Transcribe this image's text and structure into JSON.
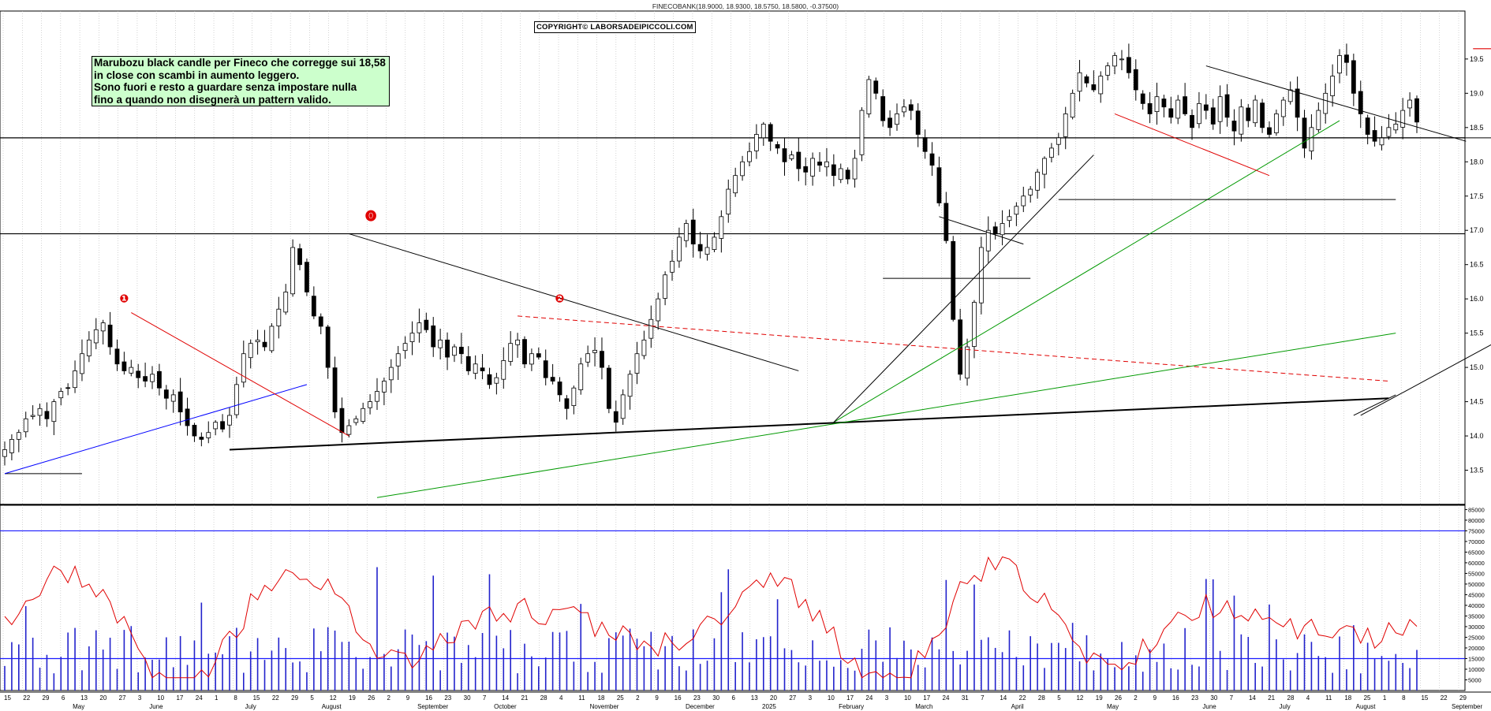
{
  "header": {
    "title": "FINECOBANK(18.9000, 18.9300, 18.5750, 18.5800, -0.37500)",
    "copyright": "COPYRIGHT© LABORSADEIPICCOLI.COM"
  },
  "note": {
    "lines": [
      "Marubozu black candle per Fineco che corregge sui 18,58",
      "in close con scambi in aumento leggero.",
      "Sono fuori e resto a guardare senza impostare nulla",
      "fino a quando non disegnerà un pattern valido."
    ]
  },
  "chart_data": {
    "type": "candlestick",
    "price_axis": {
      "ylim": [
        13.0,
        20.2
      ],
      "ticks": [
        "13.5",
        "14.0",
        "14.5",
        "15.0",
        "15.5",
        "16.0",
        "16.5",
        "17.0",
        "17.5",
        "18.0",
        "18.5",
        "19.0",
        "19.5"
      ]
    },
    "volume_axis": {
      "ylim": [
        0,
        87000
      ],
      "ticks": [
        "5000",
        "10000",
        "15000",
        "20000",
        "25000",
        "30000",
        "35000",
        "40000",
        "45000",
        "50000",
        "55000",
        "60000",
        "65000",
        "70000",
        "75000",
        "80000",
        "85000"
      ]
    },
    "x_day_labels": [
      "15",
      "22",
      "29",
      "6",
      "13",
      "20",
      "27",
      "3",
      "10",
      "17",
      "24",
      "1",
      "8",
      "15",
      "22",
      "29",
      "5",
      "12",
      "19",
      "26",
      "2",
      "9",
      "16",
      "23",
      "30",
      "7",
      "14",
      "21",
      "28",
      "4",
      "11",
      "18",
      "25",
      "2",
      "9",
      "16",
      "23",
      "30",
      "6",
      "13",
      "20",
      "27",
      "3",
      "10",
      "17",
      "24",
      "3",
      "10",
      "17",
      "24",
      "31",
      "7",
      "14",
      "22",
      "28",
      "5",
      "12",
      "19",
      "26",
      "2",
      "9",
      "16",
      "23",
      "30",
      "7",
      "14",
      "21",
      "28",
      "4",
      "11",
      "18",
      "25",
      "1",
      "8",
      "15",
      "22",
      "29"
    ],
    "x_month_labels": [
      "May",
      "June",
      "July",
      "August",
      "September",
      "October",
      "November",
      "December",
      "2025",
      "February",
      "March",
      "April",
      "May",
      "June",
      "July",
      "August",
      "September"
    ],
    "horizontal_levels": [
      16.95,
      18.35
    ],
    "volume_reference_levels": [
      75000,
      15000
    ],
    "wave_labels": [
      "❶",
      "⓿",
      "❷"
    ],
    "first_date": "2024-05-13",
    "last_date": "2025-09-15",
    "closes": [
      13.8,
      13.95,
      14.05,
      14.25,
      14.3,
      14.4,
      14.25,
      14.5,
      14.65,
      14.7,
      14.95,
      15.2,
      15.4,
      15.55,
      15.65,
      15.3,
      15.05,
      14.95,
      15.0,
      14.85,
      14.8,
      14.9,
      14.7,
      14.55,
      14.6,
      14.35,
      14.15,
      14.0,
      13.95,
      14.05,
      14.2,
      14.1,
      14.3,
      14.75,
      15.2,
      15.35,
      15.4,
      15.3,
      15.6,
      15.85,
      16.1,
      16.75,
      16.5,
      16.1,
      15.75,
      15.6,
      15.0,
      14.35,
      14.05,
      14.15,
      14.25,
      14.4,
      14.5,
      14.65,
      14.8,
      15.0,
      15.2,
      15.35,
      15.5,
      15.65,
      15.55,
      15.3,
      15.4,
      15.15,
      15.3,
      15.2,
      14.95,
      15.05,
      14.95,
      14.75,
      14.85,
      15.1,
      15.35,
      15.4,
      15.05,
      15.2,
      15.15,
      14.85,
      14.8,
      14.6,
      14.4,
      14.7,
      15.05,
      15.2,
      15.25,
      15.0,
      14.4,
      14.2,
      14.6,
      14.9,
      15.2,
      15.4,
      15.7,
      16.0,
      16.35,
      16.55,
      16.9,
      17.1,
      16.8,
      16.7,
      16.75,
      16.9,
      17.2,
      17.6,
      17.8,
      18.0,
      18.15,
      18.4,
      18.55,
      18.3,
      18.2,
      18.0,
      18.1,
      17.9,
      17.85,
      18.05,
      17.95,
      18.0,
      17.8,
      17.9,
      17.75,
      18.05,
      18.75,
      19.2,
      19.0,
      18.6,
      18.5,
      18.7,
      18.8,
      18.75,
      18.4,
      18.15,
      17.95,
      17.4,
      16.85,
      15.7,
      14.9,
      15.3,
      15.95,
      16.75,
      17.0,
      16.95,
      17.1,
      17.2,
      17.35,
      17.5,
      17.6,
      17.85,
      18.05,
      18.2,
      18.35,
      18.7,
      19.0,
      19.3,
      19.15,
      19.05,
      19.25,
      19.4,
      19.55,
      19.5,
      19.3,
      19.05,
      18.85,
      18.7,
      18.95,
      18.8,
      18.65,
      18.9,
      18.7,
      18.5,
      18.85,
      18.75,
      18.55,
      18.95,
      18.65,
      18.45,
      18.8,
      18.6,
      18.9,
      18.5,
      18.4,
      18.7,
      18.9,
      19.05,
      18.65,
      18.2,
      18.5,
      18.75,
      19.0,
      19.25,
      19.55,
      19.45,
      19.0,
      18.7,
      18.4,
      18.3,
      18.35,
      18.5,
      18.55,
      18.75,
      18.9,
      18.58
    ]
  }
}
